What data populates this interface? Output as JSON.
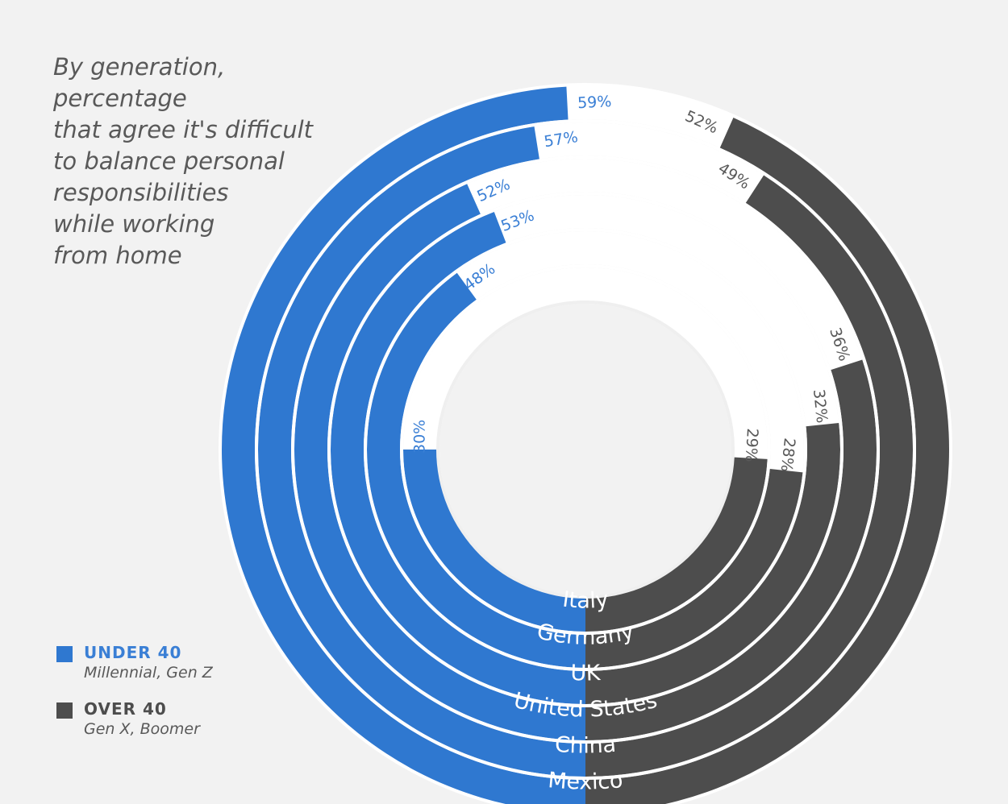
{
  "title_lines": [
    "By generation, percentage",
    "that agree it's difficult",
    "to balance personal",
    "responsibilities",
    "while working",
    "from home"
  ],
  "legend": {
    "under": {
      "label": "UNDER 40",
      "sub": "Millennial, Gen Z"
    },
    "over": {
      "label": "OVER 40",
      "sub": "Gen X, Boomer"
    }
  },
  "colors": {
    "under": "#2f78d0",
    "over": "#4d4d4d",
    "background": "#f2f2f2",
    "track": "#ffffff",
    "under_text": "#3a7fd5",
    "over_text": "#595959"
  },
  "chart_data": {
    "type": "radial-bar",
    "title": "By generation, percentage that agree it's difficult to balance personal responsibilities while working from home",
    "categories": [
      "Italy",
      "Germany",
      "UK",
      "United States",
      "China",
      "Mexico"
    ],
    "series": [
      {
        "name": "UNDER 40",
        "description": "Millennial, Gen Z",
        "values": [
          30,
          48,
          53,
          52,
          57,
          59
        ]
      },
      {
        "name": "OVER 40",
        "description": "Gen X, Boomer",
        "values": [
          29,
          28,
          32,
          36,
          49,
          52
        ]
      }
    ],
    "value_labels": {
      "under": [
        "30%",
        "48%",
        "53%",
        "52%",
        "57%",
        "59%"
      ],
      "over": [
        "29%",
        "28%",
        "32%",
        "36%",
        "49%",
        "52%"
      ]
    }
  }
}
